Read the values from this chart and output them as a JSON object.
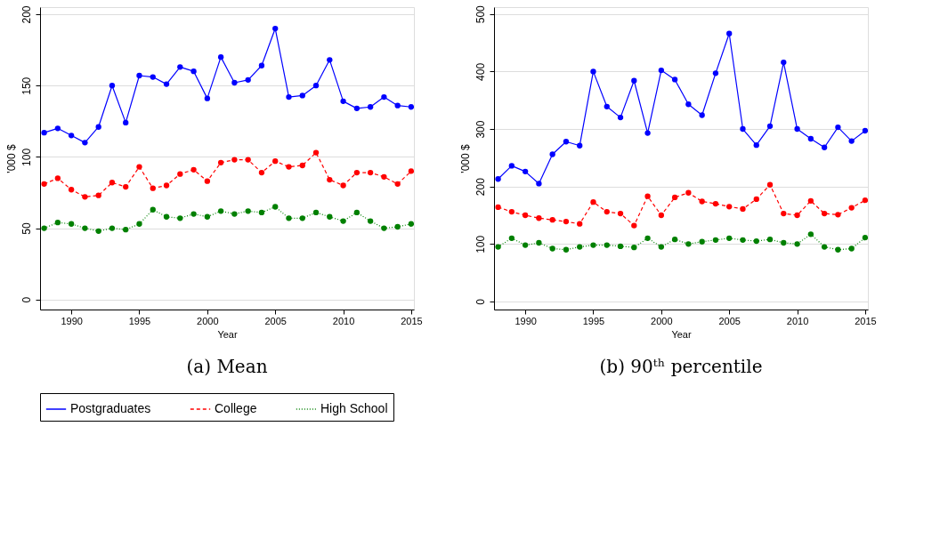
{
  "chart_data": [
    {
      "type": "line",
      "title": "(a) Mean",
      "xlabel": "Year",
      "ylabel": "'000 $",
      "xlim": [
        1987.7,
        2015.2
      ],
      "xticks": [
        1990,
        1995,
        2000,
        2005,
        2010,
        2015
      ],
      "ylim": [
        -7,
        205
      ],
      "yticks": [
        0,
        50,
        100,
        150,
        200
      ],
      "grid": "y",
      "legend": "bottom",
      "marker": "circle",
      "x": [
        1988,
        1989,
        1990,
        1991,
        1992,
        1993,
        1994,
        1995,
        1996,
        1997,
        1998,
        1999,
        2000,
        2001,
        2002,
        2003,
        2004,
        2005,
        2006,
        2007,
        2008,
        2009,
        2010,
        2011,
        2012,
        2013,
        2014,
        2015
      ],
      "series": [
        {
          "name": "Postgraduates",
          "color": "#0000ff",
          "line_style": "solid",
          "values": [
            117,
            120,
            115,
            110,
            121,
            150,
            124,
            157,
            156,
            151,
            163,
            160,
            141,
            170,
            152,
            154,
            164,
            190,
            142,
            143,
            150,
            168,
            139,
            134,
            135,
            142,
            136,
            135
          ]
        },
        {
          "name": "College",
          "color": "#ff0000",
          "line_style": "dashed",
          "values": [
            81,
            85,
            77,
            72,
            73,
            82,
            79,
            93,
            78,
            80,
            88,
            91,
            83,
            96,
            98,
            98,
            89,
            97,
            93,
            94,
            103,
            84,
            80,
            89,
            89,
            86,
            81,
            90
          ]
        },
        {
          "name": "High School",
          "color": "#008000",
          "line_style": "dotted",
          "values": [
            50,
            54,
            53,
            50,
            48,
            50,
            49,
            53,
            63,
            58,
            57,
            60,
            58,
            62,
            60,
            62,
            61,
            65,
            57,
            57,
            61,
            58,
            55,
            61,
            55,
            50,
            51,
            53
          ]
        }
      ]
    },
    {
      "type": "line",
      "title": "(b) 90ᵗʰ percentile",
      "xlabel": "Year",
      "ylabel": "'000 $",
      "xlim": [
        1987.7,
        2015.2
      ],
      "xticks": [
        1990,
        1995,
        2000,
        2005,
        2010,
        2015
      ],
      "ylim": [
        -14,
        512
      ],
      "yticks": [
        0,
        100,
        200,
        300,
        400,
        500
      ],
      "grid": "y",
      "legend": "bottom",
      "marker": "circle",
      "x": [
        1988,
        1989,
        1990,
        1991,
        1992,
        1993,
        1994,
        1995,
        1996,
        1997,
        1998,
        1999,
        2000,
        2001,
        2002,
        2003,
        2004,
        2005,
        2006,
        2007,
        2008,
        2009,
        2010,
        2011,
        2012,
        2013,
        2014,
        2015
      ],
      "series": [
        {
          "name": "Postgraduates",
          "color": "#0000ff",
          "line_style": "solid",
          "values": [
            213,
            236,
            226,
            205,
            256,
            278,
            271,
            400,
            339,
            320,
            384,
            293,
            402,
            386,
            343,
            324,
            397,
            466,
            300,
            272,
            305,
            416,
            300,
            283,
            268,
            303,
            279,
            297
          ]
        },
        {
          "name": "College",
          "color": "#ff0000",
          "line_style": "dashed",
          "values": [
            164,
            156,
            150,
            145,
            142,
            139,
            135,
            173,
            156,
            153,
            132,
            183,
            150,
            181,
            189,
            174,
            170,
            165,
            161,
            178,
            203,
            153,
            150,
            175,
            153,
            151,
            163,
            176
          ]
        },
        {
          "name": "High School",
          "color": "#008000",
          "line_style": "dotted",
          "values": [
            95,
            110,
            98,
            102,
            92,
            90,
            95,
            98,
            98,
            96,
            94,
            110,
            95,
            108,
            100,
            104,
            107,
            110,
            107,
            105,
            108,
            102,
            100,
            117,
            95,
            90,
            92,
            111
          ]
        }
      ]
    }
  ]
}
